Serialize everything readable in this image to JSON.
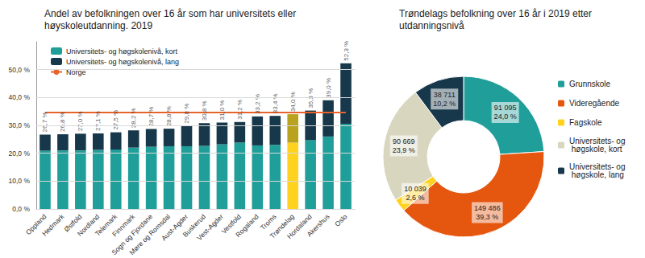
{
  "chart_data": [
    {
      "type": "bar",
      "title": "Andel av befolkningen over 16 år som har universitets eller høyskoleutdanning. 2019",
      "categories": [
        "Oppland",
        "Hedmark",
        "Østfold",
        "Nordland",
        "Telemark",
        "Finnmark",
        "Sogn og Fjordane",
        "Møre og Romsdal",
        "Aust-Agder",
        "Buskerud",
        "Vest-Agder",
        "Vestfold",
        "Rogaland",
        "Troms",
        "Trøndelag",
        "Hordaland",
        "Akershus",
        "Oslo"
      ],
      "series": [
        {
          "name": "Universitets- og høgskolenivå, kort",
          "type": "bar",
          "color": "#1f9e9a",
          "colors": [
            "#1f9e9a",
            "#1f9e9a",
            "#1f9e9a",
            "#1f9e9a",
            "#1f9e9a",
            "#1f9e9a",
            "#1f9e9a",
            "#1f9e9a",
            "#1f9e9a",
            "#1f9e9a",
            "#1f9e9a",
            "#1f9e9a",
            "#1f9e9a",
            "#1f9e9a",
            "#ffd21f",
            "#1f9e9a",
            "#1f9e9a",
            "#1f9e9a"
          ],
          "values": [
            20.9,
            21.0,
            21.0,
            21.2,
            21.3,
            22.0,
            22.3,
            22.5,
            22.5,
            22.6,
            23.2,
            23.8,
            22.8,
            23.0,
            23.8,
            24.7,
            26.0,
            30.6
          ]
        },
        {
          "name": "Universitets- og høgskolenivå, lang",
          "type": "bar",
          "color": "#17384a",
          "colors": [
            "#17384a",
            "#17384a",
            "#17384a",
            "#17384a",
            "#17384a",
            "#17384a",
            "#17384a",
            "#17384a",
            "#17384a",
            "#17384a",
            "#17384a",
            "#17384a",
            "#17384a",
            "#17384a",
            "#b8a21e",
            "#17384a",
            "#17384a",
            "#17384a"
          ],
          "values": [
            5.8,
            5.8,
            6.0,
            5.9,
            6.2,
            6.2,
            6.4,
            6.3,
            7.3,
            8.2,
            7.8,
            7.4,
            10.4,
            10.4,
            10.2,
            10.6,
            13.0,
            21.7
          ]
        },
        {
          "name": "Norge",
          "type": "line",
          "color": "#e8622a",
          "values": [
            34.6,
            34.6,
            34.6,
            34.6,
            34.6,
            34.6,
            34.6,
            34.6,
            34.6,
            34.6,
            34.6,
            34.6,
            34.6,
            34.6,
            34.6,
            34.6,
            34.6,
            34.6
          ]
        }
      ],
      "totals": [
        26.7,
        26.8,
        27.0,
        27.1,
        27.5,
        28.2,
        28.7,
        28.8,
        29.8,
        30.8,
        31.0,
        31.2,
        33.2,
        33.4,
        34.0,
        35.3,
        39.0,
        52.3
      ],
      "total_labels": [
        "26,7 %",
        "26,8 %",
        "27,0 %",
        "27,1 %",
        "27,5 %",
        "28,2 %",
        "28,7 %",
        "28,8 %",
        "29,8 %",
        "30,8 %",
        "31,0 %",
        "31,2 %",
        "33,2 %",
        "33,4 %",
        "34,0 %",
        "35,3 %",
        "39,0 %",
        "52,3 %"
      ],
      "ylim": [
        0,
        60
      ],
      "yticks": [
        {
          "value": 0,
          "label": "0,0 %"
        },
        {
          "value": 10,
          "label": "10,0 %"
        },
        {
          "value": 20,
          "label": "20,0 %"
        },
        {
          "value": 30,
          "label": "30,0 %"
        },
        {
          "value": 40,
          "label": "40,0 %"
        },
        {
          "value": 50,
          "label": "50,0 %"
        }
      ],
      "stacked": true,
      "grid": true,
      "legend": "upper left"
    },
    {
      "type": "pie",
      "title": "Trøndelags befolkning over 16 år i 2019 etter utdanningsnivå",
      "categories": [
        "Grunnskole",
        "Videregående",
        "Fagskole",
        "Universitets- og høgskole, kort",
        "Universitets- og høgskole, lang"
      ],
      "values": [
        91095,
        149486,
        10039,
        90669,
        38711
      ],
      "value_labels": [
        "91 095",
        "149 486",
        "10 039",
        "90 669",
        "38 711"
      ],
      "percent_labels": [
        "24,0 %",
        "39,3 %",
        "2,6 %",
        "23,9 %",
        "10,2 %"
      ],
      "colors": [
        "#1f9e9a",
        "#e5560f",
        "#ffd21f",
        "#d9d6bf",
        "#17384a"
      ],
      "data_labels": true,
      "legend": "right"
    }
  ]
}
